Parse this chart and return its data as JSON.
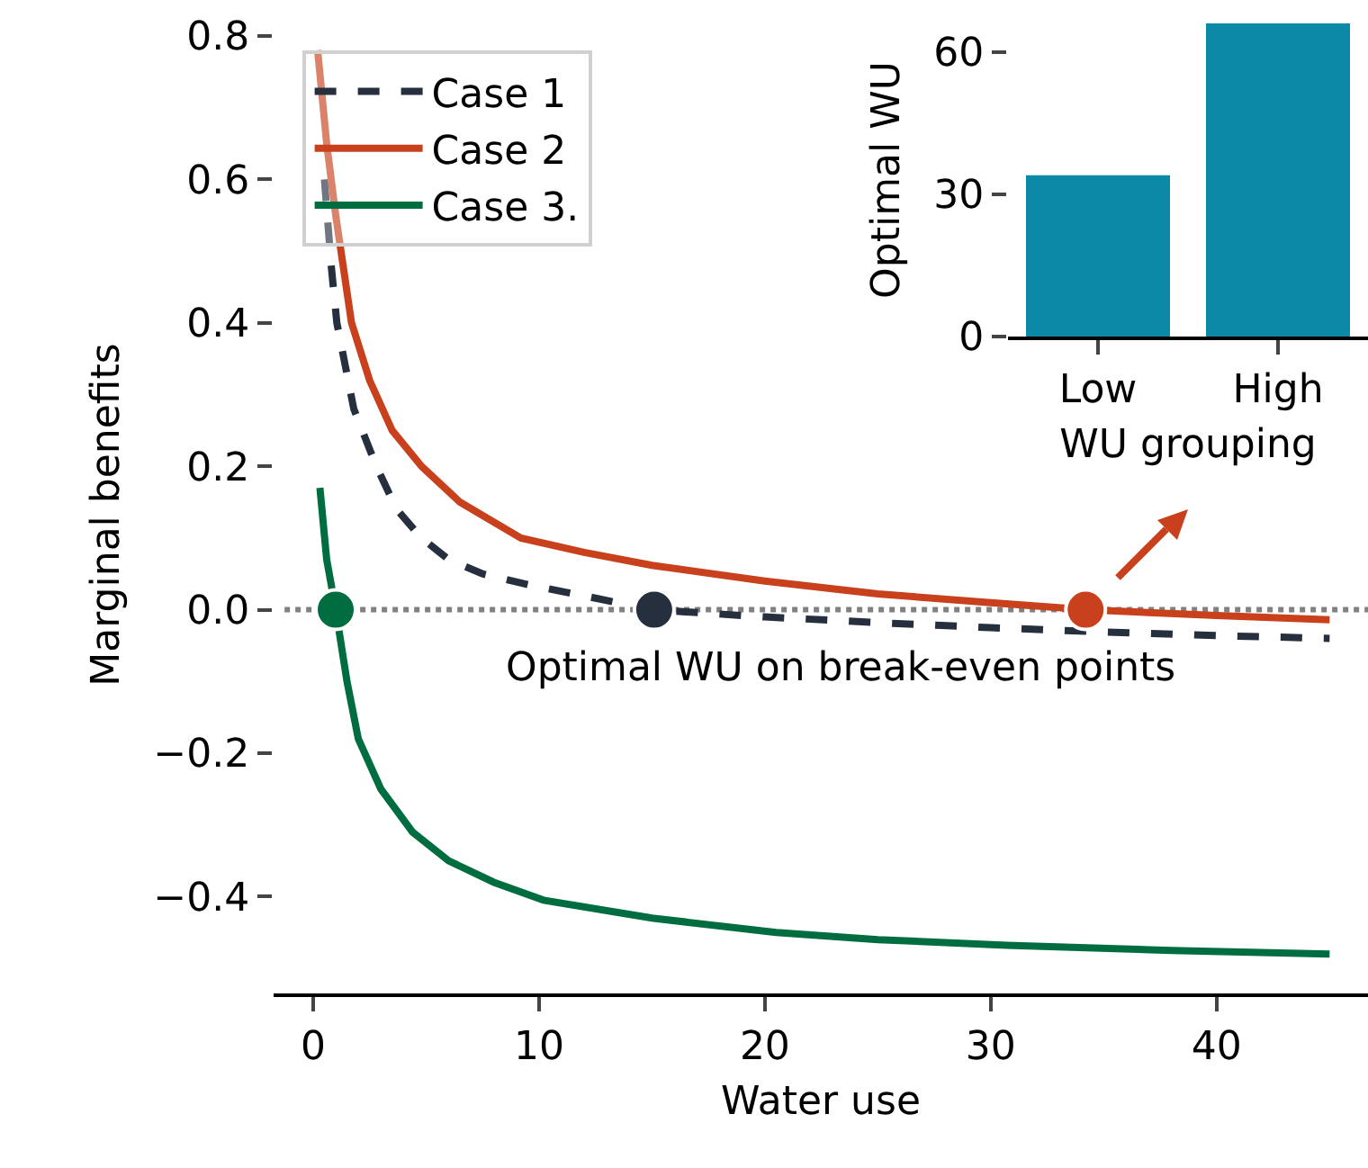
{
  "chart_data": [
    {
      "type": "line",
      "xlabel": "Water use",
      "ylabel": "Marginal benefits",
      "xlim": [
        -1.75,
        46.7
      ],
      "ylim": [
        -0.535,
        0.8
      ],
      "xticks": [
        0,
        10,
        20,
        30,
        40
      ],
      "yticks": [
        {
          "value": -0.4,
          "label": "−0.4"
        },
        {
          "value": -0.2,
          "label": "−0.2"
        },
        {
          "value": 0,
          "label": "0.0"
        },
        0.2,
        0.4,
        0.6,
        0.8
      ],
      "legend": "top left",
      "annotations": [
        "Optimal WU on break-even points"
      ],
      "ref_lines": [
        {
          "axis": "y",
          "value": 0,
          "color": "#808080",
          "line_style": "dotted"
        }
      ],
      "series": [
        {
          "name": "Case 1",
          "color": "#262f3e",
          "line_style": "dashed",
          "x": [
            0.5,
            0.8,
            1.05,
            1.8,
            2.8,
            3.7,
            4.8,
            6,
            7.5,
            9.5,
            11.9,
            15,
            20,
            25,
            30,
            35,
            40,
            45
          ],
          "values": [
            0.6,
            0.48,
            0.4,
            0.28,
            0.2,
            0.14,
            0.1,
            0.07,
            0.05,
            0.035,
            0.02,
            0,
            -0.01,
            -0.018,
            -0.025,
            -0.031,
            -0.036,
            -0.04
          ]
        },
        {
          "name": "Case 2",
          "color": "#c8401c",
          "line_style": "solid",
          "x": [
            0.2,
            0.6,
            1,
            1.7,
            2.5,
            3.5,
            4.8,
            6.5,
            9.2,
            12,
            15,
            20,
            25,
            30,
            34.2,
            40,
            45
          ],
          "values": [
            0.78,
            0.65,
            0.55,
            0.4,
            0.32,
            0.25,
            0.2,
            0.15,
            0.1,
            0.08,
            0.062,
            0.04,
            0.022,
            0.01,
            0,
            -0.008,
            -0.014
          ]
        },
        {
          "name": "Case 3.",
          "color": "#006d41",
          "line_style": "solid",
          "x": [
            0.3,
            0.6,
            1,
            1.5,
            2,
            3,
            4.4,
            6,
            8,
            10.2,
            15,
            20.5,
            25,
            30.7,
            38,
            45
          ],
          "values": [
            0.17,
            0.07,
            0,
            -0.1,
            -0.18,
            -0.25,
            -0.31,
            -0.35,
            -0.38,
            -0.405,
            -0.43,
            -0.45,
            -0.46,
            -0.468,
            -0.475,
            -0.48
          ]
        },
        {
          "type": "scatter",
          "marker": "circle",
          "color": "#006d41",
          "x": [
            1
          ],
          "values": [
            0
          ]
        },
        {
          "type": "scatter",
          "marker": "circle",
          "color": "#262f3e",
          "x": [
            15.1
          ],
          "values": [
            0
          ]
        },
        {
          "type": "scatter",
          "marker": "circle",
          "color": "#c8401c",
          "x": [
            34.2
          ],
          "values": [
            0
          ]
        }
      ]
    },
    {
      "type": "bar",
      "xlabel": "WU grouping",
      "ylabel": "Optimal WU",
      "categories": [
        "Low",
        "High"
      ],
      "values": [
        34,
        66
      ],
      "color": "#0b89a6",
      "ylim": [
        0,
        66
      ],
      "yticks": [
        0,
        30,
        60
      ]
    }
  ]
}
